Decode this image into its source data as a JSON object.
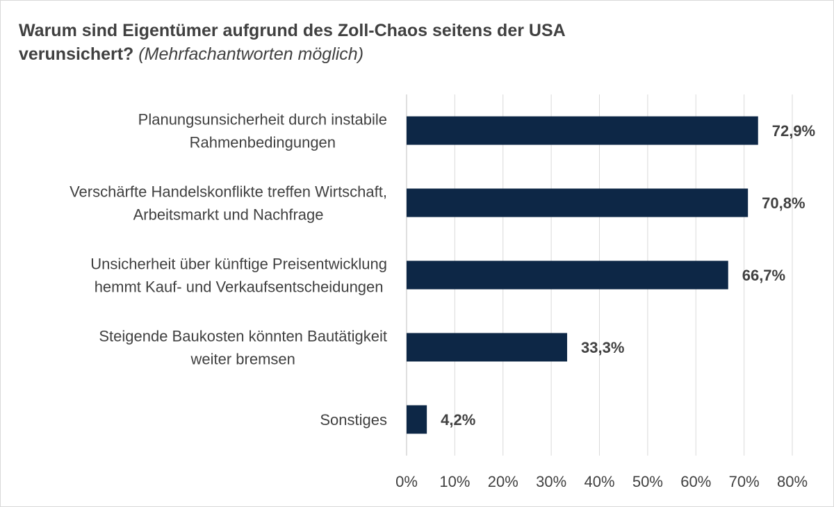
{
  "title_line1": "Warum sind Eigentümer aufgrund des Zoll-Chaos seitens der USA",
  "title_line2": "verunsichert?",
  "subtitle": "(Mehrfachantworten möglich)",
  "colors": {
    "bar": "#0d2746",
    "grid": "#d9d9d9",
    "text": "#404040"
  },
  "chart_data": {
    "type": "bar",
    "orientation": "horizontal",
    "categories": [
      [
        "Planungsunsicherheit durch instabile",
        "Rahmenbedingungen"
      ],
      [
        "Verschärfte Handelskonflikte treffen Wirtschaft,",
        "Arbeitsmarkt und Nachfrage"
      ],
      [
        "Unsicherheit über künftige Preisentwicklung",
        "hemmt Kauf- und Verkaufsentscheidungen"
      ],
      [
        "Steigende Baukosten könnten Bautätigkeit",
        "weiter bremsen"
      ],
      [
        "Sonstiges"
      ]
    ],
    "values": [
      72.9,
      70.8,
      66.7,
      33.3,
      4.2
    ],
    "value_labels": [
      "72,9%",
      "70,8%",
      "66,7%",
      "33,3%",
      "4,2%"
    ],
    "xlim": [
      0,
      80
    ],
    "ticks": [
      "0%",
      "10%",
      "20%",
      "30%",
      "40%",
      "50%",
      "60%",
      "70%",
      "80%"
    ],
    "grid": true,
    "legend": false
  }
}
